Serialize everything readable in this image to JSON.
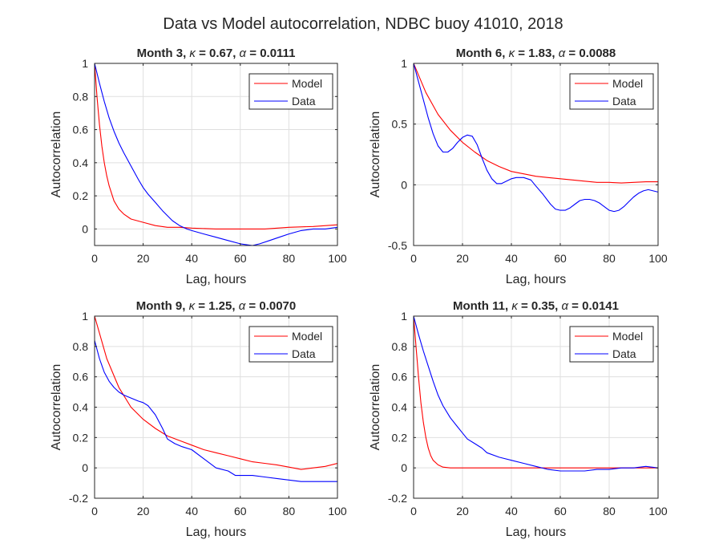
{
  "figure_title": "Data vs Model autocorrelation, NDBC buoy 41010, 2018",
  "colors": {
    "model": "#ff0000",
    "data": "#0000ff",
    "grid": "#dfdfdf",
    "axes": "#262626"
  },
  "chart_data": [
    {
      "type": "line",
      "title_prefix": "Month 3, ",
      "kappa": "0.67",
      "alpha": "0.0111",
      "xlabel": "Lag, hours",
      "ylabel": "Autocorrelation",
      "xlim": [
        0,
        100
      ],
      "ylim": [
        -0.1,
        1
      ],
      "xticks": [
        0,
        20,
        40,
        60,
        80,
        100
      ],
      "yticks": [
        0,
        0.2,
        0.4,
        0.6,
        0.8,
        1
      ],
      "grid": true,
      "legend_position": "top-right",
      "series": [
        {
          "name": "Model",
          "color": "#ff0000",
          "x": [
            0,
            1,
            2,
            3,
            4,
            5,
            6,
            8,
            10,
            12,
            15,
            20,
            25,
            30,
            35,
            40,
            50,
            60,
            70,
            80,
            90,
            100
          ],
          "y": [
            1,
            0.8,
            0.63,
            0.5,
            0.4,
            0.32,
            0.26,
            0.17,
            0.12,
            0.09,
            0.06,
            0.04,
            0.02,
            0.01,
            0.01,
            0.005,
            0.0,
            0.0,
            0.0,
            0.01,
            0.015,
            0.025
          ]
        },
        {
          "name": "Data",
          "color": "#0000ff",
          "x": [
            0,
            2,
            4,
            6,
            8,
            10,
            12,
            15,
            18,
            20,
            22,
            25,
            28,
            30,
            32,
            35,
            38,
            40,
            45,
            50,
            55,
            60,
            65,
            68,
            72,
            76,
            80,
            85,
            90,
            95,
            100
          ],
          "y": [
            1,
            0.88,
            0.77,
            0.67,
            0.59,
            0.52,
            0.46,
            0.38,
            0.3,
            0.25,
            0.21,
            0.16,
            0.11,
            0.08,
            0.05,
            0.02,
            0.0,
            -0.01,
            -0.03,
            -0.05,
            -0.07,
            -0.09,
            -0.1,
            -0.09,
            -0.07,
            -0.05,
            -0.03,
            -0.01,
            0.0,
            0.0,
            0.01
          ]
        }
      ]
    },
    {
      "type": "line",
      "title_prefix": "Month 6, ",
      "kappa": "1.83",
      "alpha": "0.0088",
      "xlabel": "Lag, hours",
      "ylabel": "Autocorrelation",
      "xlim": [
        0,
        100
      ],
      "ylim": [
        -0.5,
        1
      ],
      "xticks": [
        0,
        20,
        40,
        60,
        80,
        100
      ],
      "yticks": [
        -0.5,
        0,
        0.5,
        1
      ],
      "grid": true,
      "legend_position": "top-right",
      "series": [
        {
          "name": "Model",
          "color": "#ff0000",
          "x": [
            0,
            5,
            10,
            15,
            20,
            25,
            30,
            35,
            40,
            45,
            50,
            55,
            60,
            65,
            70,
            75,
            80,
            85,
            90,
            95,
            100
          ],
          "y": [
            1,
            0.76,
            0.58,
            0.45,
            0.35,
            0.27,
            0.2,
            0.15,
            0.11,
            0.09,
            0.07,
            0.06,
            0.05,
            0.04,
            0.03,
            0.02,
            0.02,
            0.015,
            0.02,
            0.025,
            0.025
          ]
        },
        {
          "name": "Data",
          "color": "#0000ff",
          "x": [
            0,
            2,
            4,
            6,
            8,
            10,
            12,
            14,
            16,
            18,
            20,
            22,
            24,
            26,
            28,
            30,
            32,
            34,
            36,
            38,
            40,
            42,
            45,
            48,
            50,
            53,
            56,
            58,
            60,
            62,
            64,
            66,
            68,
            70,
            72,
            74,
            76,
            78,
            80,
            82,
            84,
            86,
            88,
            90,
            92,
            94,
            96,
            98,
            100
          ],
          "y": [
            1,
            0.85,
            0.7,
            0.55,
            0.42,
            0.32,
            0.27,
            0.27,
            0.3,
            0.35,
            0.39,
            0.41,
            0.4,
            0.33,
            0.22,
            0.12,
            0.05,
            0.01,
            0.01,
            0.03,
            0.05,
            0.06,
            0.06,
            0.04,
            -0.01,
            -0.08,
            -0.16,
            -0.2,
            -0.21,
            -0.21,
            -0.19,
            -0.16,
            -0.13,
            -0.12,
            -0.12,
            -0.13,
            -0.15,
            -0.18,
            -0.21,
            -0.22,
            -0.21,
            -0.18,
            -0.14,
            -0.1,
            -0.07,
            -0.05,
            -0.04,
            -0.05,
            -0.06
          ]
        }
      ]
    },
    {
      "type": "line",
      "title_prefix": "Month 9, ",
      "kappa": "1.25",
      "alpha": "0.0070",
      "xlabel": "Lag, hours",
      "ylabel": "Autocorrelation",
      "xlim": [
        0,
        100
      ],
      "ylim": [
        -0.2,
        1
      ],
      "xticks": [
        0,
        20,
        40,
        60,
        80,
        100
      ],
      "yticks": [
        -0.2,
        0,
        0.2,
        0.4,
        0.6,
        0.8,
        1
      ],
      "grid": true,
      "legend_position": "top-right",
      "series": [
        {
          "name": "Model",
          "color": "#ff0000",
          "x": [
            0,
            5,
            10,
            15,
            20,
            25,
            30,
            35,
            40,
            45,
            50,
            55,
            60,
            65,
            70,
            75,
            80,
            85,
            90,
            95,
            100
          ],
          "y": [
            1,
            0.72,
            0.53,
            0.4,
            0.32,
            0.26,
            0.21,
            0.18,
            0.15,
            0.12,
            0.1,
            0.08,
            0.06,
            0.04,
            0.03,
            0.02,
            0.005,
            -0.01,
            0.0,
            0.01,
            0.03
          ]
        },
        {
          "name": "Data",
          "color": "#0000ff",
          "x": [
            0,
            2,
            4,
            6,
            8,
            10,
            12,
            15,
            18,
            20,
            22,
            25,
            28,
            30,
            33,
            36,
            40,
            45,
            50,
            55,
            58,
            60,
            65,
            70,
            75,
            80,
            85,
            90,
            95,
            100
          ],
          "y": [
            0.84,
            0.72,
            0.63,
            0.57,
            0.53,
            0.5,
            0.48,
            0.46,
            0.44,
            0.43,
            0.41,
            0.35,
            0.26,
            0.19,
            0.16,
            0.14,
            0.12,
            0.06,
            0.0,
            -0.02,
            -0.05,
            -0.05,
            -0.05,
            -0.06,
            -0.07,
            -0.08,
            -0.09,
            -0.09,
            -0.09,
            -0.09
          ]
        }
      ]
    },
    {
      "type": "line",
      "title_prefix": "Month 11, ",
      "kappa": "0.35",
      "alpha": "0.0141",
      "xlabel": "Lag, hours",
      "ylabel": "Autocorrelation",
      "xlim": [
        0,
        100
      ],
      "ylim": [
        -0.2,
        1
      ],
      "xticks": [
        0,
        20,
        40,
        60,
        80,
        100
      ],
      "yticks": [
        -0.2,
        0,
        0.2,
        0.4,
        0.6,
        0.8,
        1
      ],
      "grid": true,
      "legend_position": "top-right",
      "series": [
        {
          "name": "Model",
          "color": "#ff0000",
          "x": [
            0,
            0.5,
            1,
            1.5,
            2,
            3,
            4,
            5,
            6,
            7,
            8,
            10,
            12,
            15,
            20,
            30,
            40,
            50,
            60,
            70,
            80,
            90,
            100
          ],
          "y": [
            1,
            0.9,
            0.8,
            0.7,
            0.6,
            0.43,
            0.3,
            0.2,
            0.13,
            0.08,
            0.05,
            0.02,
            0.005,
            0.0,
            0.0,
            0.0,
            0.0,
            0.0,
            0.0,
            0.0,
            0.0,
            0.0,
            0.0
          ]
        },
        {
          "name": "Data",
          "color": "#0000ff",
          "x": [
            0,
            2,
            4,
            6,
            8,
            10,
            12,
            15,
            18,
            20,
            22,
            25,
            28,
            30,
            35,
            40,
            45,
            50,
            55,
            60,
            65,
            70,
            75,
            80,
            85,
            90,
            95,
            100
          ],
          "y": [
            1,
            0.88,
            0.77,
            0.67,
            0.57,
            0.48,
            0.41,
            0.33,
            0.27,
            0.23,
            0.19,
            0.16,
            0.13,
            0.1,
            0.07,
            0.05,
            0.03,
            0.01,
            -0.01,
            -0.02,
            -0.02,
            -0.02,
            -0.01,
            -0.01,
            0.0,
            0.0,
            0.01,
            0.0
          ]
        }
      ]
    }
  ]
}
